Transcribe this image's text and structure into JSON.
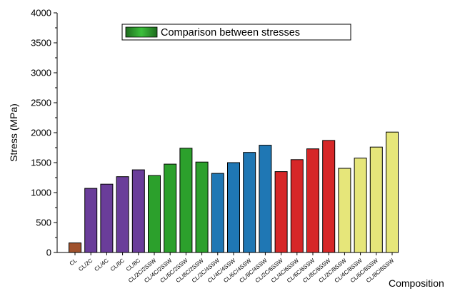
{
  "chart_data": {
    "type": "bar",
    "title": "",
    "xlabel": "Composition",
    "ylabel": "Stress (MPa)",
    "ylim": [
      0,
      4000
    ],
    "yticks": [
      0,
      500,
      1000,
      1500,
      2000,
      2500,
      3000,
      3500,
      4000
    ],
    "grid": false,
    "legend": {
      "label": "Comparison between stresses",
      "position": "top-center"
    },
    "categories": [
      "CL",
      "CL/2C",
      "CL/4C",
      "CL/6C",
      "CL/8C",
      "CL/2C/2SSW",
      "CL/4C/2SSW",
      "CL/6C/2SSW",
      "CL/8C/2SSW",
      "CL/2C/4SSW",
      "CL/4C/4SSW",
      "CL/6C/4SSW",
      "CL/8C/4SSW",
      "CL/2C/6SSW",
      "CL/4C/6SSW",
      "CL/6C/6SSW",
      "CL/8C/6SSW",
      "CL/2C/8SSW",
      "CL/4C/8SSW",
      "CL/6C/8SSW",
      "CL/8C/8SSW"
    ],
    "values": [
      160,
      1070,
      1140,
      1265,
      1380,
      1285,
      1475,
      1740,
      1510,
      1320,
      1500,
      1670,
      1790,
      1350,
      1550,
      1730,
      1870,
      1405,
      1575,
      1760,
      2010
    ],
    "bar_colors": [
      "#a0522d",
      "#6a3d9a",
      "#6a3d9a",
      "#6a3d9a",
      "#6a3d9a",
      "#2ca02c",
      "#2ca02c",
      "#2ca02c",
      "#2ca02c",
      "#1f77b4",
      "#1f77b4",
      "#1f77b4",
      "#1f77b4",
      "#d62728",
      "#d62728",
      "#d62728",
      "#d62728",
      "#e6e67a",
      "#e6e67a",
      "#e6e67a",
      "#e6e67a"
    ]
  }
}
